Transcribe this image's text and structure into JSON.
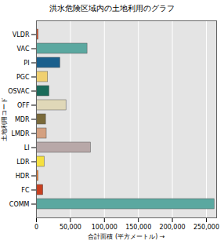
{
  "chart_data": {
    "type": "bar",
    "orientation": "horizontal",
    "title": "洪水危険区域内の土地利用のグラフ",
    "x_label": "合計面積 (平方メートル)",
    "y_label": "土地利用コード",
    "categories": [
      "VLDR",
      "VAC",
      "PI",
      "PGC",
      "OSVAC",
      "OFF",
      "MDR",
      "LMDR",
      "LI",
      "LDR",
      "HDR",
      "FC",
      "COMM"
    ],
    "values": [
      3000,
      75000,
      35000,
      17000,
      19000,
      44000,
      14000,
      15000,
      80000,
      12000,
      3000,
      10000,
      262000
    ],
    "colors": [
      "#d9542b",
      "#5ba8a0",
      "#1a5f8c",
      "#f0d070",
      "#1a6b5a",
      "#e0d8b8",
      "#7a6a3a",
      "#d4a080",
      "#b8a8a8",
      "#f5e040",
      "#f08030",
      "#c84020",
      "#5ba8a0"
    ],
    "xlim": [
      0,
      265000
    ],
    "xticks": [
      0,
      {
        "value": 50000,
        "label": "50,000"
      },
      {
        "value": 100000,
        "label": "100,000"
      },
      {
        "value": 150000,
        "label": "150,000"
      },
      {
        "value": 200000,
        "label": "200,000"
      },
      {
        "value": 250000,
        "label": "250,000"
      }
    ],
    "grid": true
  }
}
